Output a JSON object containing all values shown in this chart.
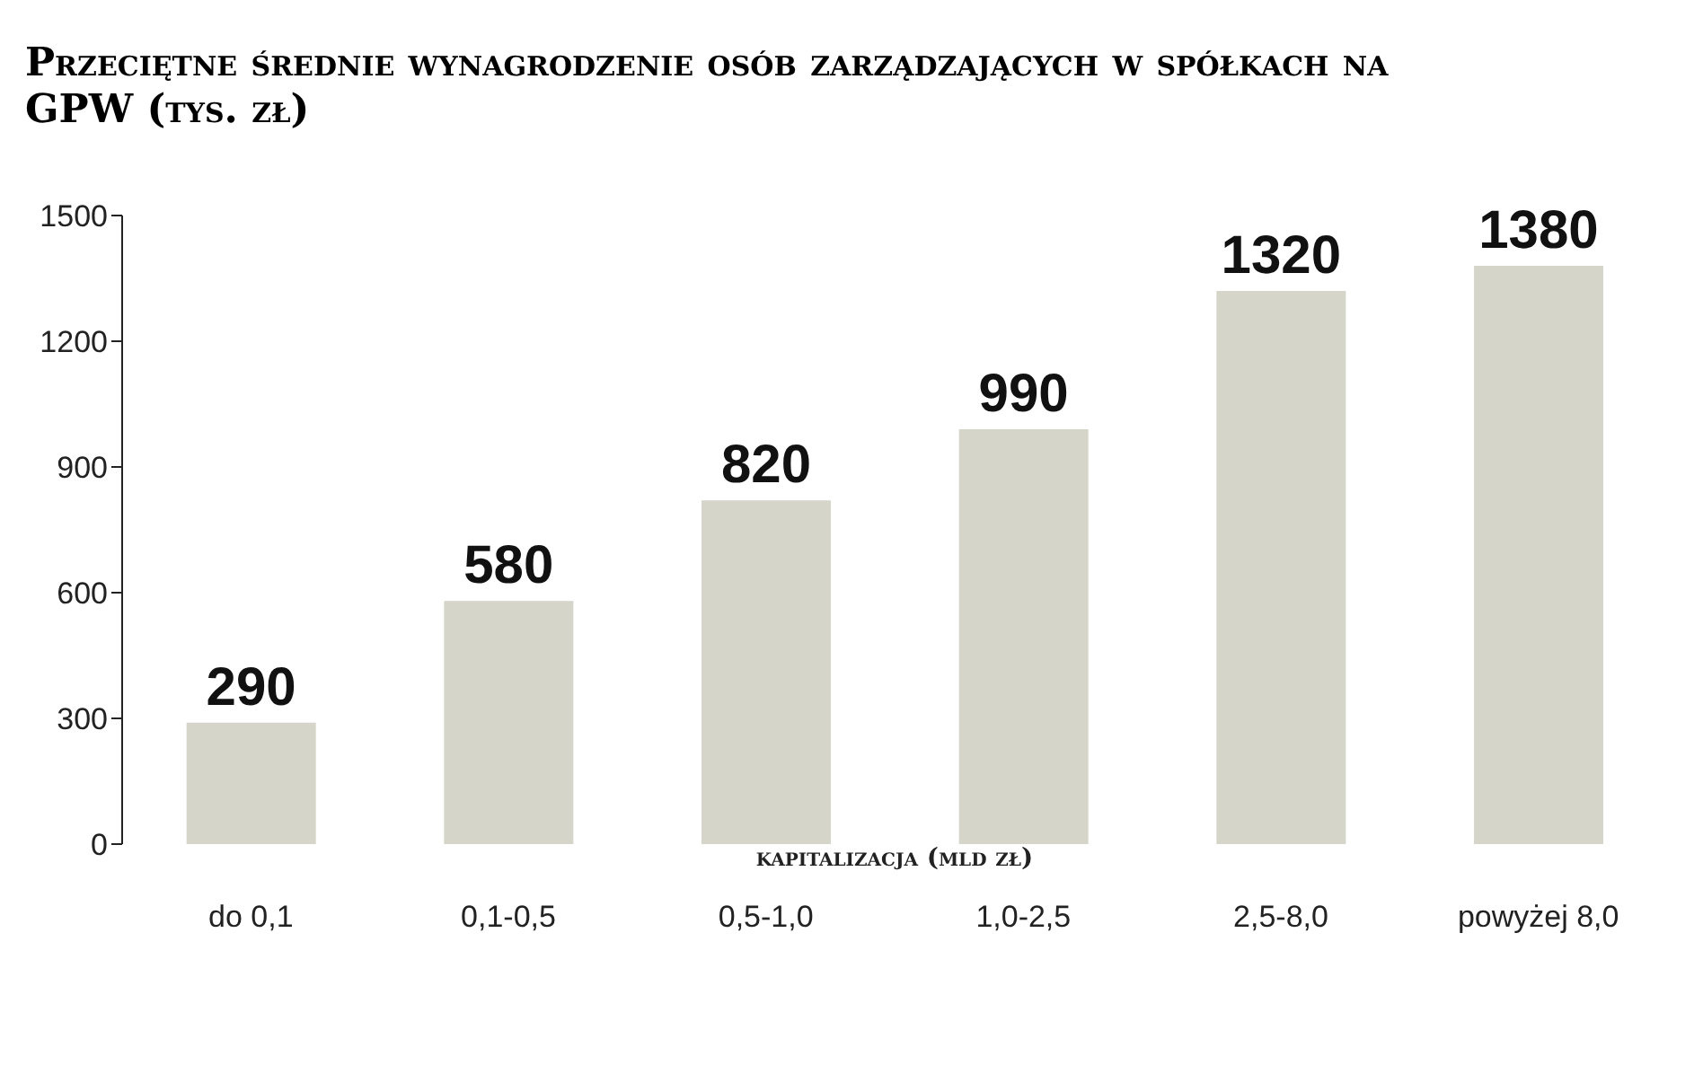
{
  "chart_data": {
    "type": "bar",
    "title": "Przeciętne średnie wynagrodzenie osób zarządzających w spółkach na GPW (tys. zł)",
    "xlabel": "kapitalizacja (mld zł)",
    "categories": [
      "do 0,1",
      "0,1-0,5",
      "0,5-1,0",
      "1,0-2,5",
      "2,5-8,0",
      "powyżej 8,0"
    ],
    "values": [
      290,
      580,
      820,
      990,
      1320,
      1380
    ],
    "color": "#d5d5ca",
    "ylim": [
      0,
      1500
    ],
    "yticks": [
      0,
      300,
      600,
      900,
      1200,
      1500
    ],
    "data_labels": true
  }
}
